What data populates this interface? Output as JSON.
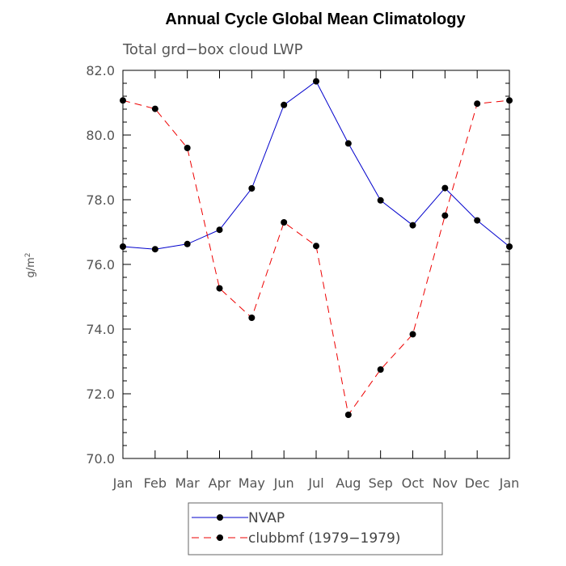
{
  "chart_data": {
    "type": "line",
    "title": "Annual Cycle Global Mean Climatology",
    "subtitle": "Total grd−box cloud LWP",
    "ylabel_base": "g/m",
    "ylabel_sup": "2",
    "categories": [
      "Jan",
      "Feb",
      "Mar",
      "Apr",
      "May",
      "Jun",
      "Jul",
      "Aug",
      "Sep",
      "Oct",
      "Nov",
      "Dec",
      "Jan"
    ],
    "ylim": [
      70.0,
      82.0
    ],
    "yticks": [
      "70.0",
      "72.0",
      "74.0",
      "76.0",
      "78.0",
      "80.0",
      "82.0"
    ],
    "series": [
      {
        "name": "NVAP",
        "color": "#0000cc",
        "dash": "solid",
        "values": [
          76.55,
          76.47,
          76.63,
          77.07,
          78.35,
          80.93,
          81.66,
          79.74,
          77.98,
          77.21,
          78.36,
          77.36,
          76.55
        ]
      },
      {
        "name": "clubbmf (1979−1979)",
        "color": "#ee0000",
        "dash": "dashed",
        "values": [
          81.07,
          80.81,
          79.6,
          75.26,
          74.35,
          77.3,
          76.57,
          71.35,
          72.75,
          73.84,
          77.51,
          80.97,
          81.07
        ]
      }
    ]
  }
}
